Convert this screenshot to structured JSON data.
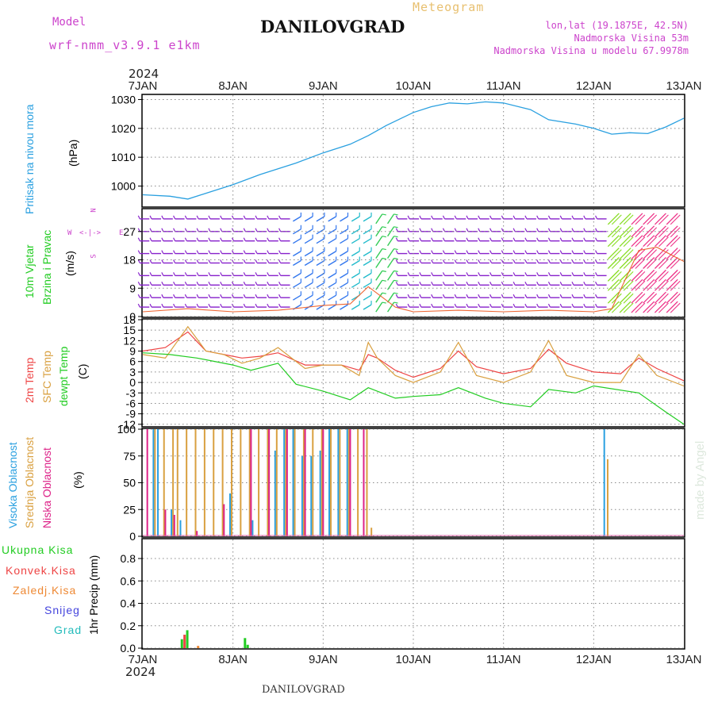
{
  "header": {
    "model_label": "Model",
    "model_name": "wrf-nmm_v3.9.1 e1km",
    "station": "DANILOVGRAD",
    "meteogram": "Meteogram",
    "lonlat": "lon,lat (19.1875E, 42.5N)",
    "elevation": "Nadmorska Visina 53m",
    "model_elevation": "Nadmorska Visina u modelu 67.9978m",
    "year_top": "2024",
    "year_bottom": "2024",
    "footer_station": "DANILOVGRAD",
    "credit": "made by Angel"
  },
  "colors": {
    "pressure": "#2aa0e0",
    "wind_label": "#22cc22",
    "t2m": "#ee4444",
    "sfc": "#d9a040",
    "dewpt": "#22cc22",
    "cloud_high": "#2aa0e0",
    "cloud_mid": "#d9a040",
    "cloud_low": "#dd2288",
    "precip_total": "#22cc22",
    "precip_conv": "#ee4444",
    "precip_frozen": "#ee8833",
    "precip_snow": "#4444dd",
    "precip_hail": "#22bbbb",
    "wind_barb": "#8822cc",
    "compass": "#cc44cc"
  },
  "panel_labels": {
    "pressure": [
      "Pritisak na nivou mora",
      "(hPa)"
    ],
    "wind": [
      "10m Vjetar",
      "Brzina i Pravac",
      "(m/s)"
    ],
    "temp": [
      "2m Temp",
      "SFC Temp",
      "dewpt Temp",
      "(C)"
    ],
    "cloud": [
      "Visoka Oblacnost",
      "Srednja Oblacnost",
      "Niska Oblacnost",
      "(%)"
    ],
    "precip_axis": "1hr Precip (mm)",
    "precip_legend": [
      "Ukupna Kisa",
      "Konvek.Kisa",
      "Zaledj.Kisa",
      "Snijeg",
      "Grad"
    ]
  },
  "compass": {
    "n": "N",
    "e": "E",
    "w": "W",
    "s": "S"
  },
  "chart_data": [
    {
      "type": "line",
      "ylabel": "(hPa)",
      "x_ticks": [
        "7JAN",
        "8JAN",
        "9JAN",
        "10JAN",
        "11JAN",
        "12JAN",
        "13JAN"
      ],
      "y_ticks": [
        1000,
        1010,
        1020,
        1030
      ],
      "ylim": [
        993,
        1031.5
      ],
      "series": [
        {
          "name": "Pritisak na nivou mora",
          "x": [
            7.0,
            7.3,
            7.5,
            7.7,
            8.0,
            8.3,
            8.5,
            8.7,
            9.0,
            9.3,
            9.5,
            9.7,
            10.0,
            10.2,
            10.4,
            10.6,
            10.8,
            11.0,
            11.3,
            11.5,
            11.8,
            12.0,
            12.2,
            12.4,
            12.6,
            12.8,
            13.0
          ],
          "y": [
            997,
            996.5,
            995.5,
            997.5,
            1000.5,
            1004,
            1006,
            1008,
            1011.5,
            1014.5,
            1017.5,
            1021,
            1025.5,
            1027.5,
            1028.8,
            1028.5,
            1029.2,
            1028.8,
            1026.5,
            1023,
            1021.5,
            1020,
            1018,
            1018.5,
            1018.2,
            1020.5,
            1023.5
          ]
        }
      ]
    },
    {
      "type": "line",
      "ylabel": "(m/s)",
      "y_ticks": [
        0,
        9,
        18,
        27
      ],
      "ylim": [
        0,
        34
      ],
      "series": [
        {
          "name": "10m Vjetar",
          "x": [
            7.0,
            7.5,
            8.0,
            8.5,
            9.0,
            9.3,
            9.5,
            9.8,
            10.0,
            10.5,
            11.0,
            11.5,
            12.0,
            12.2,
            12.5,
            12.7,
            12.9,
            13.0
          ],
          "y": [
            1.5,
            2.5,
            1.5,
            2,
            3.5,
            4,
            9.5,
            3,
            1.5,
            2,
            1.5,
            2,
            1.5,
            2.5,
            21,
            22,
            19,
            17.5
          ]
        }
      ]
    },
    {
      "type": "line",
      "ylabel": "(C)",
      "y_ticks": [
        -12,
        -9,
        -6,
        -3,
        0,
        3,
        6,
        9,
        12,
        15,
        18
      ],
      "ylim": [
        -12.5,
        18
      ],
      "series": [
        {
          "name": "2m Temp",
          "x": [
            7.0,
            7.25,
            7.5,
            7.7,
            7.9,
            8.1,
            8.3,
            8.5,
            8.8,
            9.0,
            9.2,
            9.4,
            9.5,
            9.6,
            9.8,
            10.0,
            10.3,
            10.5,
            10.7,
            11.0,
            11.3,
            11.5,
            11.7,
            12.0,
            12.3,
            12.5,
            12.7,
            13.0
          ],
          "y": [
            9,
            10,
            14.5,
            9,
            8,
            7,
            7.5,
            8.5,
            5,
            5,
            5,
            3.5,
            8,
            7,
            3.5,
            1.5,
            4,
            9,
            4.5,
            2.5,
            4,
            9.5,
            5.5,
            3,
            2.5,
            7,
            4,
            0.5
          ]
        },
        {
          "name": "SFC Temp",
          "x": [
            7.0,
            7.25,
            7.5,
            7.7,
            7.9,
            8.1,
            8.3,
            8.5,
            8.8,
            9.0,
            9.2,
            9.4,
            9.5,
            9.6,
            9.8,
            10.0,
            10.3,
            10.5,
            10.7,
            11.0,
            11.3,
            11.5,
            11.7,
            12.0,
            12.3,
            12.5,
            12.7,
            13.0
          ],
          "y": [
            8,
            7,
            16,
            9,
            8,
            5.5,
            7,
            10,
            4,
            5,
            5,
            2,
            11.5,
            7,
            2,
            0,
            3,
            11.5,
            2,
            0,
            3,
            12,
            2,
            0,
            0,
            8,
            2,
            -1
          ]
        },
        {
          "name": "dewpt Temp",
          "x": [
            7.0,
            7.3,
            7.6,
            8.0,
            8.2,
            8.5,
            8.7,
            9.0,
            9.3,
            9.5,
            9.8,
            10.0,
            10.3,
            10.5,
            10.8,
            11.0,
            11.3,
            11.5,
            11.8,
            12.0,
            12.5,
            12.8,
            13.0
          ],
          "y": [
            8.5,
            8,
            7,
            5,
            3.5,
            5.5,
            -0.5,
            -2.5,
            -5,
            -1.5,
            -4.5,
            -4,
            -3.5,
            -1.5,
            -4.5,
            -6,
            -7,
            -2,
            -3,
            -1,
            -3,
            -8.5,
            -12
          ]
        }
      ]
    },
    {
      "type": "bar",
      "ylabel": "(%)",
      "y_ticks": [
        0,
        25,
        50,
        75,
        100
      ],
      "ylim": [
        0,
        100
      ],
      "series": [
        {
          "name": "Visoka Oblacnost",
          "x": [
            7.1,
            7.15,
            7.3,
            7.4,
            7.95,
            8.2,
            8.45,
            8.55,
            8.65,
            8.75,
            8.85,
            8.95,
            9.05,
            9.15,
            9.25,
            12.1
          ],
          "values": [
            100,
            100,
            25,
            15,
            40,
            15,
            80,
            100,
            100,
            75,
            75,
            80,
            100,
            100,
            100,
            100
          ]
        },
        {
          "name": "Srednja Oblacnost",
          "x": [
            7.1,
            7.2,
            7.3,
            7.35,
            7.45,
            7.55,
            7.65,
            7.75,
            7.85,
            7.95,
            8.05,
            8.15,
            8.25,
            8.35,
            8.45,
            8.55,
            8.65,
            8.75,
            8.85,
            8.95,
            9.05,
            9.15,
            9.25,
            9.35,
            9.45,
            9.5,
            12.12
          ],
          "values": [
            100,
            100,
            100,
            100,
            100,
            100,
            100,
            100,
            100,
            100,
            100,
            100,
            100,
            100,
            100,
            100,
            100,
            100,
            100,
            100,
            100,
            100,
            100,
            100,
            100,
            8,
            72
          ]
        },
        {
          "name": "Niska Oblacnost",
          "x": [
            7.05,
            7.25,
            7.35,
            7.6,
            7.9,
            8.2,
            8.4,
            8.6,
            8.8,
            9.0,
            9.3,
            9.45
          ],
          "values": [
            100,
            25,
            20,
            5,
            30,
            100,
            100,
            100,
            100,
            100,
            100,
            100
          ]
        }
      ]
    },
    {
      "type": "bar",
      "ylabel": "1hr Precip (mm)",
      "y_ticks": [
        0.0,
        0.2,
        0.4,
        0.6,
        0.8
      ],
      "ylim": [
        0,
        0.97
      ],
      "series": [
        {
          "name": "Ukupna Kisa",
          "x": [
            7.42,
            7.48,
            8.12,
            8.15
          ],
          "values": [
            0.08,
            0.16,
            0.09,
            0.03
          ]
        },
        {
          "name": "Konvek.Kisa",
          "x": [
            7.45
          ],
          "values": [
            0.12
          ]
        },
        {
          "name": "Zaledj.Kisa",
          "x": [
            7.6
          ],
          "values": [
            0.02
          ]
        },
        {
          "name": "Snijeg",
          "x": [],
          "values": []
        },
        {
          "name": "Grad",
          "x": [],
          "values": []
        }
      ]
    }
  ]
}
